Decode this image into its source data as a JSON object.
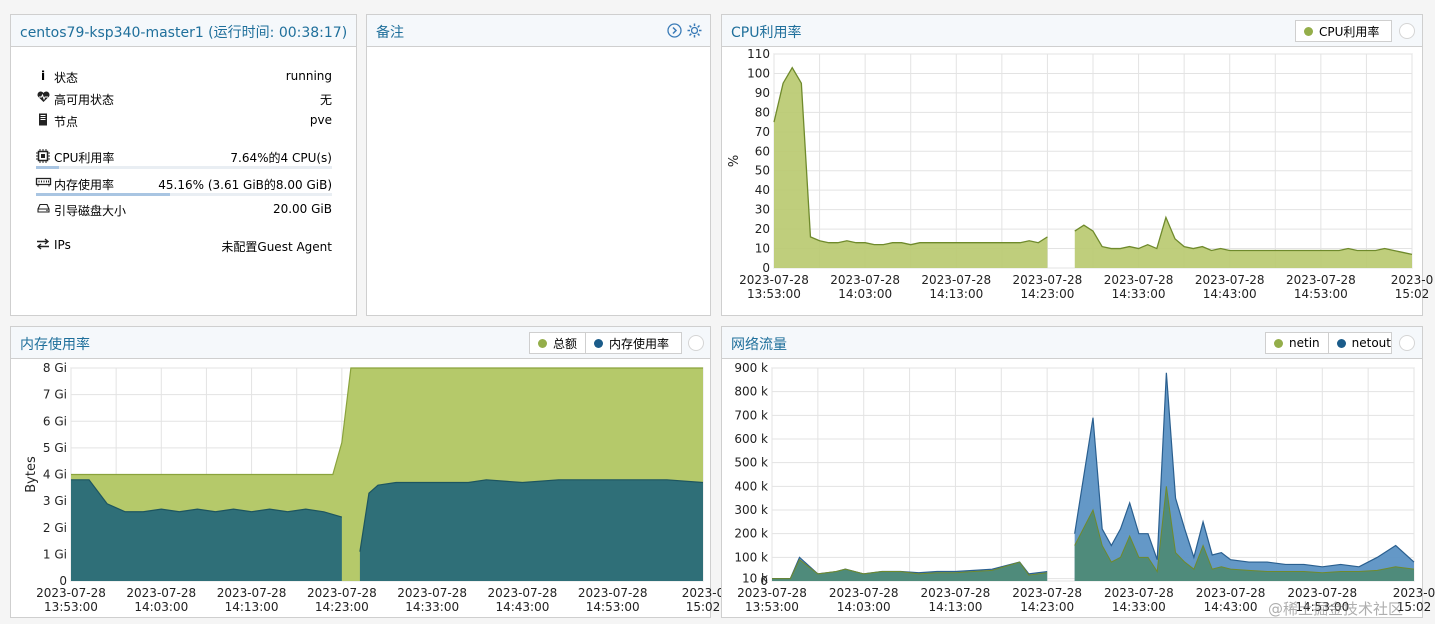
{
  "status_panel": {
    "title": "centos79-ksp340-master1 (运行时间: 00:38:17)",
    "rows": [
      {
        "icon": "info-icon",
        "label": "状态",
        "value": "running"
      },
      {
        "icon": "heartbeat-icon",
        "label": "高可用状态",
        "value": "无"
      },
      {
        "icon": "server-icon",
        "label": "节点",
        "value": "pve"
      },
      {
        "icon": "cpu-icon",
        "label": "CPU利用率",
        "value": "7.64%的4 CPU(s)",
        "progress": 0.0764
      },
      {
        "icon": "memory-icon",
        "label": "内存使用率",
        "value": "45.16% (3.61 GiB的8.00 GiB)",
        "progress": 0.4516
      },
      {
        "icon": "hdd-icon",
        "label": "引导磁盘大小",
        "value": "20.00 GiB"
      },
      {
        "icon": "exchange-icon",
        "label": "IPs",
        "value": "未配置Guest Agent"
      }
    ]
  },
  "notes_panel": {
    "title": "备注",
    "icons": [
      "circle-chevron-right-icon",
      "gear-icon"
    ]
  },
  "cpu_panel": {
    "title": "CPU利用率",
    "legend": [
      "CPU利用率"
    ],
    "legend_colors": [
      "#94ae4a"
    ]
  },
  "mem_panel": {
    "title": "内存使用率",
    "legend": [
      "总额",
      "内存使用率"
    ],
    "legend_colors": [
      "#94ae4a",
      "#1b5c8a"
    ]
  },
  "net_panel": {
    "title": "网络流量",
    "legend": [
      "netin",
      "netout"
    ],
    "legend_colors": [
      "#94ae4a",
      "#1b5c8a"
    ]
  },
  "watermark": "@稀土掘金技术社区",
  "chart_data": [
    {
      "type": "area",
      "title": "CPU利用率",
      "ylabel": "%",
      "ylim": [
        0,
        110
      ],
      "yticks": [
        0,
        10,
        20,
        30,
        40,
        50,
        60,
        70,
        80,
        90,
        100,
        110
      ],
      "xlim": [
        0,
        70
      ],
      "xticks": [
        {
          "x": 0,
          "date": "2023-07-28",
          "time": "13:53:00"
        },
        {
          "x": 10,
          "date": "2023-07-28",
          "time": "14:03:00"
        },
        {
          "x": 20,
          "date": "2023-07-28",
          "time": "14:13:00"
        },
        {
          "x": 30,
          "date": "2023-07-28",
          "time": "14:23:00"
        },
        {
          "x": 40,
          "date": "2023-07-28",
          "time": "14:33:00"
        },
        {
          "x": 50,
          "date": "2023-07-28",
          "time": "14:43:00"
        },
        {
          "x": 60,
          "date": "2023-07-28",
          "time": "14:53:00"
        },
        {
          "x": 70,
          "date": "2023-0",
          "time": "15:02"
        }
      ],
      "series": [
        {
          "name": "CPU利用率",
          "color": "#94ae4a",
          "segments": [
            [
              [
                0,
                75
              ],
              [
                1,
                95
              ],
              [
                2,
                103
              ],
              [
                3,
                95
              ],
              [
                4,
                16
              ],
              [
                5,
                14
              ],
              [
                6,
                13
              ],
              [
                7,
                13
              ],
              [
                8,
                14
              ],
              [
                9,
                13
              ],
              [
                10,
                13
              ],
              [
                11,
                12
              ],
              [
                12,
                12
              ],
              [
                13,
                13
              ],
              [
                14,
                13
              ],
              [
                15,
                12
              ],
              [
                16,
                13
              ],
              [
                17,
                13
              ],
              [
                18,
                13
              ],
              [
                19,
                13
              ],
              [
                20,
                13
              ],
              [
                21,
                13
              ],
              [
                22,
                13
              ],
              [
                23,
                13
              ],
              [
                24,
                13
              ],
              [
                25,
                13
              ],
              [
                26,
                13
              ],
              [
                27,
                13
              ],
              [
                28,
                14
              ],
              [
                29,
                13
              ],
              [
                30,
                16
              ]
            ],
            [
              [
                33,
                19
              ],
              [
                34,
                22
              ],
              [
                35,
                19
              ],
              [
                36,
                11
              ],
              [
                37,
                10
              ],
              [
                38,
                10
              ],
              [
                39,
                11
              ],
              [
                40,
                10
              ],
              [
                41,
                12
              ],
              [
                42,
                10
              ],
              [
                43,
                26
              ],
              [
                44,
                15
              ],
              [
                45,
                11
              ],
              [
                46,
                10
              ],
              [
                47,
                11
              ],
              [
                48,
                9
              ],
              [
                49,
                10
              ],
              [
                50,
                9
              ],
              [
                51,
                9
              ],
              [
                52,
                9
              ],
              [
                53,
                9
              ],
              [
                54,
                9
              ],
              [
                55,
                9
              ],
              [
                56,
                9
              ],
              [
                57,
                9
              ],
              [
                58,
                9
              ],
              [
                59,
                9
              ],
              [
                60,
                9
              ],
              [
                61,
                9
              ],
              [
                62,
                9
              ],
              [
                63,
                10
              ],
              [
                64,
                9
              ],
              [
                65,
                9
              ],
              [
                66,
                9
              ],
              [
                67,
                10
              ],
              [
                68,
                9
              ],
              [
                69,
                8
              ],
              [
                70,
                7
              ]
            ]
          ]
        }
      ]
    },
    {
      "type": "area",
      "title": "内存使用率",
      "ylabel": "Bytes",
      "ylim": [
        0,
        8
      ],
      "ytick_labels": [
        "0",
        "1 Gi",
        "2 Gi",
        "3 Gi",
        "4 Gi",
        "5 Gi",
        "6 Gi",
        "7 Gi",
        "8 Gi"
      ],
      "xlim": [
        0,
        70
      ],
      "xticks": [
        {
          "x": 0,
          "date": "2023-07-28",
          "time": "13:53:00"
        },
        {
          "x": 10,
          "date": "2023-07-28",
          "time": "14:03:00"
        },
        {
          "x": 20,
          "date": "2023-07-28",
          "time": "14:13:00"
        },
        {
          "x": 30,
          "date": "2023-07-28",
          "time": "14:23:00"
        },
        {
          "x": 40,
          "date": "2023-07-28",
          "time": "14:33:00"
        },
        {
          "x": 50,
          "date": "2023-07-28",
          "time": "14:43:00"
        },
        {
          "x": 60,
          "date": "2023-07-28",
          "time": "14:53:00"
        },
        {
          "x": 70,
          "date": "2023-0",
          "time": "15:02"
        }
      ],
      "series": [
        {
          "name": "总额",
          "color": "#a8bf57",
          "points": [
            [
              0,
              4
            ],
            [
              29,
              4
            ],
            [
              30,
              5.2
            ],
            [
              31,
              8
            ],
            [
              70,
              8
            ]
          ],
          "gap": [
            30,
            31
          ]
        },
        {
          "name": "内存使用率",
          "color": "#2b6f7a",
          "segments": [
            [
              [
                0,
                3.8
              ],
              [
                2,
                3.8
              ],
              [
                4,
                2.9
              ],
              [
                6,
                2.6
              ],
              [
                8,
                2.6
              ],
              [
                10,
                2.7
              ],
              [
                12,
                2.6
              ],
              [
                14,
                2.7
              ],
              [
                16,
                2.6
              ],
              [
                18,
                2.7
              ],
              [
                20,
                2.6
              ],
              [
                22,
                2.7
              ],
              [
                24,
                2.6
              ],
              [
                26,
                2.7
              ],
              [
                28,
                2.6
              ],
              [
                30,
                2.4
              ]
            ],
            [
              [
                32,
                1.1
              ],
              [
                33,
                3.3
              ],
              [
                34,
                3.6
              ],
              [
                36,
                3.7
              ],
              [
                40,
                3.7
              ],
              [
                44,
                3.7
              ],
              [
                46,
                3.8
              ],
              [
                50,
                3.7
              ],
              [
                54,
                3.8
              ],
              [
                58,
                3.8
              ],
              [
                62,
                3.8
              ],
              [
                66,
                3.8
              ],
              [
                70,
                3.7
              ]
            ]
          ]
        }
      ]
    },
    {
      "type": "area",
      "title": "网络流量",
      "ylim": [
        0,
        900
      ],
      "ytick_labels": [
        "0",
        "10 k",
        "100 k",
        "200 k",
        "300 k",
        "400 k",
        "500 k",
        "600 k",
        "700 k",
        "800 k",
        "900 k"
      ],
      "xlim": [
        0,
        70
      ],
      "xticks": [
        {
          "x": 0,
          "date": "2023-07-28",
          "time": "13:53:00"
        },
        {
          "x": 10,
          "date": "2023-07-28",
          "time": "14:03:00"
        },
        {
          "x": 20,
          "date": "2023-07-28",
          "time": "14:13:00"
        },
        {
          "x": 30,
          "date": "2023-07-28",
          "time": "14:23:00"
        },
        {
          "x": 40,
          "date": "2023-07-28",
          "time": "14:33:00"
        },
        {
          "x": 50,
          "date": "2023-07-28",
          "time": "14:43:00"
        },
        {
          "x": 60,
          "date": "2023-07-28",
          "time": "14:53:00"
        },
        {
          "x": 70,
          "date": "2023-0",
          "time": "15:02"
        }
      ],
      "series": [
        {
          "name": "netout",
          "color": "#3d7fb6",
          "segments": [
            [
              [
                0,
                10
              ],
              [
                2,
                10
              ],
              [
                3,
                100
              ],
              [
                5,
                30
              ],
              [
                7,
                40
              ],
              [
                8,
                50
              ],
              [
                10,
                30
              ],
              [
                12,
                40
              ],
              [
                14,
                40
              ],
              [
                16,
                35
              ],
              [
                18,
                40
              ],
              [
                20,
                40
              ],
              [
                22,
                45
              ],
              [
                24,
                50
              ],
              [
                27,
                80
              ],
              [
                28,
                30
              ],
              [
                30,
                40
              ]
            ],
            [
              [
                33,
                200
              ],
              [
                35,
                690
              ],
              [
                36,
                220
              ],
              [
                37,
                150
              ],
              [
                38,
                220
              ],
              [
                39,
                330
              ],
              [
                40,
                200
              ],
              [
                41,
                200
              ],
              [
                42,
                90
              ],
              [
                43,
                880
              ],
              [
                44,
                350
              ],
              [
                45,
                220
              ],
              [
                46,
                100
              ],
              [
                47,
                250
              ],
              [
                48,
                110
              ],
              [
                49,
                120
              ],
              [
                50,
                90
              ],
              [
                52,
                80
              ],
              [
                54,
                80
              ],
              [
                56,
                70
              ],
              [
                58,
                70
              ],
              [
                60,
                60
              ],
              [
                62,
                70
              ],
              [
                64,
                60
              ],
              [
                66,
                100
              ],
              [
                68,
                150
              ],
              [
                70,
                80
              ]
            ]
          ]
        },
        {
          "name": "netin",
          "color": "#5c8c59",
          "segments": [
            [
              [
                0,
                10
              ],
              [
                2,
                10
              ],
              [
                3,
                90
              ],
              [
                5,
                30
              ],
              [
                7,
                40
              ],
              [
                8,
                50
              ],
              [
                10,
                30
              ],
              [
                12,
                40
              ],
              [
                14,
                40
              ],
              [
                16,
                30
              ],
              [
                18,
                35
              ],
              [
                20,
                35
              ],
              [
                22,
                40
              ],
              [
                24,
                45
              ],
              [
                27,
                80
              ],
              [
                28,
                25
              ],
              [
                30,
                35
              ]
            ],
            [
              [
                33,
                150
              ],
              [
                35,
                300
              ],
              [
                36,
                150
              ],
              [
                37,
                80
              ],
              [
                38,
                100
              ],
              [
                39,
                190
              ],
              [
                40,
                100
              ],
              [
                41,
                100
              ],
              [
                42,
                40
              ],
              [
                43,
                400
              ],
              [
                44,
                120
              ],
              [
                45,
                80
              ],
              [
                46,
                50
              ],
              [
                47,
                150
              ],
              [
                48,
                50
              ],
              [
                49,
                60
              ],
              [
                50,
                50
              ],
              [
                52,
                45
              ],
              [
                54,
                40
              ],
              [
                56,
                40
              ],
              [
                58,
                40
              ],
              [
                60,
                35
              ],
              [
                62,
                40
              ],
              [
                64,
                40
              ],
              [
                66,
                45
              ],
              [
                68,
                60
              ],
              [
                70,
                50
              ]
            ]
          ]
        }
      ]
    }
  ]
}
